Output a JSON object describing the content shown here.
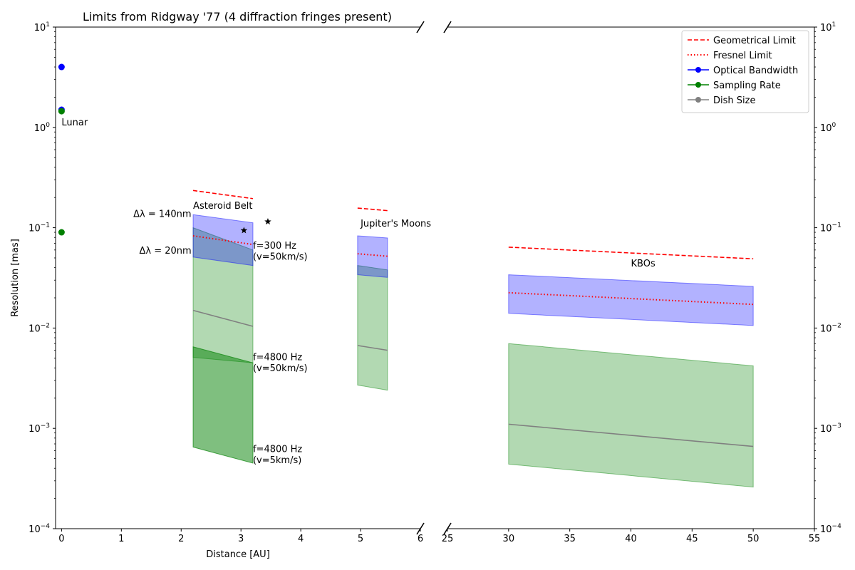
{
  "chart_data": {
    "type": "area",
    "title": "Limits from Ridgway '77 (4 diffraction fringes present)",
    "xlabel": "Distance [AU]",
    "ylabel": "Resolution [mas]",
    "yscale": "log",
    "ylim": [
      0.0001,
      10
    ],
    "broken_x_axis": true,
    "left_panel": {
      "xlim": [
        -0.1,
        6
      ],
      "xticks": [
        "0",
        "1",
        "2",
        "3",
        "4",
        "5",
        "6"
      ]
    },
    "right_panel": {
      "xlim": [
        25,
        55
      ],
      "xticks": [
        "25",
        "30",
        "35",
        "40",
        "45",
        "50",
        "55"
      ]
    },
    "yticks": [
      "10^{-4}",
      "10^{-3}",
      "10^{-2}",
      "10^{-1}",
      "10^{0}",
      "10^{1}"
    ],
    "legend": {
      "position": "top-right",
      "entries": [
        {
          "label": "Geometrical Limit",
          "color": "#ff0000",
          "style": "dashed"
        },
        {
          "label": "Fresnel Limit",
          "color": "#ff0000",
          "style": "dotted"
        },
        {
          "label": "Optical Bandwidth",
          "color": "#0000ff",
          "style": "line-marker"
        },
        {
          "label": "Sampling Rate",
          "color": "#008000",
          "style": "line-marker"
        },
        {
          "label": "Dish Size",
          "color": "#808080",
          "style": "line-marker"
        }
      ]
    },
    "series": [
      {
        "name": "Geometrical Limit",
        "panel": "left",
        "x": [
          2.2,
          3.2
        ],
        "y": [
          0.235,
          0.195
        ],
        "color": "#ff0000",
        "style": "dashed"
      },
      {
        "name": "Geometrical Limit",
        "panel": "left",
        "x": [
          4.95,
          5.45
        ],
        "y": [
          0.157,
          0.148
        ],
        "color": "#ff0000",
        "style": "dashed"
      },
      {
        "name": "Geometrical Limit",
        "panel": "right",
        "x": [
          30,
          50
        ],
        "y": [
          0.064,
          0.049
        ],
        "color": "#ff0000",
        "style": "dashed"
      },
      {
        "name": "Fresnel Limit",
        "panel": "left",
        "x": [
          2.2,
          3.2
        ],
        "y": [
          0.083,
          0.068
        ],
        "color": "#ff0000",
        "style": "dotted"
      },
      {
        "name": "Fresnel Limit",
        "panel": "left",
        "x": [
          4.95,
          5.45
        ],
        "y": [
          0.055,
          0.052
        ],
        "color": "#ff0000",
        "style": "dotted"
      },
      {
        "name": "Fresnel Limit",
        "panel": "right",
        "x": [
          30,
          50
        ],
        "y": [
          0.0225,
          0.0172
        ],
        "color": "#ff0000",
        "style": "dotted"
      },
      {
        "name": "Dish Size",
        "panel": "left",
        "x": [
          2.2,
          3.2
        ],
        "y": [
          0.015,
          0.0104
        ],
        "color": "#808080",
        "style": "solid"
      },
      {
        "name": "Dish Size",
        "panel": "left",
        "x": [
          4.95,
          5.45
        ],
        "y": [
          0.0067,
          0.006
        ],
        "color": "#808080",
        "style": "solid"
      },
      {
        "name": "Dish Size",
        "panel": "right",
        "x": [
          30,
          50
        ],
        "y": [
          0.0011,
          0.00066
        ],
        "color": "#808080",
        "style": "solid"
      }
    ],
    "bands": [
      {
        "name": "Sampling Rate",
        "panel": "left",
        "x": [
          2.2,
          3.2
        ],
        "upper": [
          0.1,
          0.06
        ],
        "lower": [
          0.0051,
          0.0045
        ],
        "color": "#008000",
        "opacity": 0.3
      },
      {
        "name": "Sampling Rate",
        "panel": "left",
        "x": [
          2.2,
          3.2
        ],
        "upper": [
          0.0065,
          0.0045
        ],
        "lower": [
          0.00065,
          0.00045
        ],
        "color": "#008000",
        "opacity": 0.5
      },
      {
        "name": "Optical Bandwidth",
        "panel": "left",
        "x": [
          2.2,
          3.2
        ],
        "upper": [
          0.135,
          0.112
        ],
        "lower": [
          0.051,
          0.042
        ],
        "color": "#0000ff",
        "opacity": 0.3
      },
      {
        "name": "Sampling Rate",
        "panel": "left",
        "x": [
          4.95,
          5.45
        ],
        "upper": [
          0.042,
          0.038
        ],
        "lower": [
          0.0027,
          0.0024
        ],
        "color": "#008000",
        "opacity": 0.3
      },
      {
        "name": "Optical Bandwidth",
        "panel": "left",
        "x": [
          4.95,
          5.45
        ],
        "upper": [
          0.083,
          0.079
        ],
        "lower": [
          0.034,
          0.032
        ],
        "color": "#0000ff",
        "opacity": 0.3
      },
      {
        "name": "Sampling Rate",
        "panel": "right",
        "x": [
          30,
          50
        ],
        "upper": [
          0.007,
          0.0042
        ],
        "lower": [
          0.00044,
          0.00026
        ],
        "color": "#008000",
        "opacity": 0.3
      },
      {
        "name": "Optical Bandwidth",
        "panel": "right",
        "x": [
          30,
          50
        ],
        "upper": [
          0.034,
          0.026
        ],
        "lower": [
          0.014,
          0.0106
        ],
        "color": "#0000ff",
        "opacity": 0.3
      }
    ],
    "points": [
      {
        "name": "Optical Bandwidth",
        "panel": "left",
        "x": 0,
        "y": 4.0,
        "color": "#0000ff",
        "marker": "circle"
      },
      {
        "name": "Optical Bandwidth",
        "panel": "left",
        "x": 0,
        "y": 1.5,
        "color": "#0000ff",
        "marker": "circle"
      },
      {
        "name": "Sampling Rate",
        "panel": "left",
        "x": 0,
        "y": 1.45,
        "color": "#008000",
        "marker": "circle"
      },
      {
        "name": "Sampling Rate",
        "panel": "left",
        "x": 0,
        "y": 0.09,
        "color": "#008000",
        "marker": "circle"
      },
      {
        "name": "star",
        "panel": "left",
        "x": 3.05,
        "y": 0.094,
        "color": "#000000",
        "marker": "star"
      },
      {
        "name": "star",
        "panel": "left",
        "x": 3.45,
        "y": 0.115,
        "color": "#000000",
        "marker": "star"
      }
    ],
    "annotations": [
      {
        "text": "Lunar",
        "panel": "left",
        "x": 0.0,
        "y": 1.05
      },
      {
        "text": "Asteroid Belt",
        "panel": "left",
        "x": 2.2,
        "y": 0.155
      },
      {
        "text": "Δλ = 140nm",
        "panel": "left",
        "x": 1.2,
        "y": 0.128
      },
      {
        "text": "Δλ = 20nm",
        "panel": "left",
        "x": 1.3,
        "y": 0.055
      },
      {
        "text": "f=300 Hz",
        "panel": "left",
        "x": 3.2,
        "y": 0.062
      },
      {
        "text": " (v=50km/s)",
        "panel": "left",
        "x": 3.2,
        "y": 0.048
      },
      {
        "text": "f=4800 Hz",
        "panel": "left",
        "x": 3.2,
        "y": 0.0048
      },
      {
        "text": " (v=50km/s)",
        "panel": "left",
        "x": 3.2,
        "y": 0.0037
      },
      {
        "text": "f=4800 Hz",
        "panel": "left",
        "x": 3.2,
        "y": 0.00058
      },
      {
        "text": " (v=5km/s)",
        "panel": "left",
        "x": 3.2,
        "y": 0.00045
      },
      {
        "text": "Jupiter's Moons",
        "panel": "left",
        "x": 5.0,
        "y": 0.103
      },
      {
        "text": "KBOs",
        "panel": "right",
        "x": 40,
        "y": 0.041
      }
    ]
  }
}
